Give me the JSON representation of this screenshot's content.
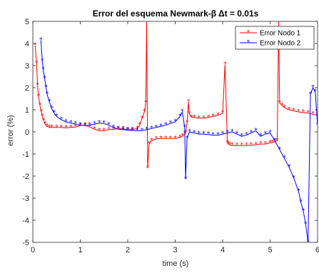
{
  "chart_data": {
    "type": "line",
    "title": "Error del esquema Newmark-β Δt = 0.01s",
    "xlabel": "time (s)",
    "ylabel": "error (%)",
    "xlim": [
      0,
      6
    ],
    "ylim": [
      -5,
      5
    ],
    "xticks": [
      "0",
      "1",
      "2",
      "3",
      "4",
      "5",
      "6"
    ],
    "yticks": [
      "5",
      "4",
      "3",
      "2",
      "1",
      "0",
      "-1",
      "-2",
      "-3",
      "-4",
      "-5"
    ],
    "grid": false,
    "legend_position": "top-right",
    "series": [
      {
        "name": "Error Nodo 1",
        "color": "#ff0000",
        "marker": "asterisk",
        "x": [
          0.05,
          0.08,
          0.1,
          0.12,
          0.15,
          0.18,
          0.2,
          0.23,
          0.26,
          0.3,
          0.35,
          0.4,
          0.5,
          0.6,
          0.7,
          0.8,
          0.9,
          1.0,
          1.1,
          1.2,
          1.3,
          1.4,
          1.5,
          1.6,
          1.7,
          1.8,
          1.9,
          2.0,
          2.1,
          2.2,
          2.25,
          2.3,
          2.35,
          2.38,
          2.4,
          2.42,
          2.45,
          2.5,
          2.6,
          2.7,
          2.8,
          2.9,
          3.0,
          3.1,
          3.15,
          3.2,
          3.22,
          3.25,
          3.28,
          3.3,
          3.35,
          3.4,
          3.5,
          3.6,
          3.7,
          3.8,
          3.9,
          4.0,
          4.05,
          4.1,
          4.12,
          4.15,
          4.2,
          4.3,
          4.4,
          4.5,
          4.6,
          4.7,
          4.8,
          4.9,
          5.0,
          5.05,
          5.1,
          5.15,
          5.18,
          5.2,
          5.25,
          5.3,
          5.4,
          5.5,
          5.6,
          5.7,
          5.8,
          5.9,
          6.0
        ],
        "y": [
          3.9,
          3.1,
          2.1,
          1.6,
          1.2,
          0.9,
          0.7,
          0.5,
          0.35,
          0.25,
          0.2,
          0.2,
          0.2,
          0.2,
          0.18,
          0.2,
          0.22,
          0.28,
          0.3,
          0.22,
          0.12,
          0.05,
          0.05,
          0.1,
          0.12,
          0.14,
          0.14,
          0.1,
          0.1,
          0.15,
          0.3,
          0.6,
          0.9,
          1.3,
          5.0,
          -1.65,
          -0.55,
          -0.4,
          -0.32,
          -0.3,
          -0.3,
          -0.3,
          -0.3,
          -0.25,
          -0.2,
          -0.1,
          -0.05,
          0.4,
          1.35,
          0.8,
          0.65,
          0.65,
          0.62,
          0.62,
          0.65,
          0.7,
          0.75,
          0.85,
          3.05,
          -0.5,
          -0.55,
          -0.6,
          -0.62,
          -0.62,
          -0.62,
          -0.62,
          -0.6,
          -0.58,
          -0.55,
          -0.55,
          -0.5,
          -0.48,
          -0.45,
          -0.4,
          5.0,
          1.3,
          1.2,
          1.1,
          1.0,
          0.95,
          0.9,
          0.88,
          0.85,
          0.8,
          0.75
        ]
      },
      {
        "name": "Error Nodo 2",
        "color": "#0000ff",
        "marker": "asterisk",
        "x": [
          0.17,
          0.2,
          0.22,
          0.25,
          0.28,
          0.3,
          0.35,
          0.4,
          0.45,
          0.5,
          0.6,
          0.7,
          0.8,
          0.9,
          1.0,
          1.1,
          1.2,
          1.3,
          1.4,
          1.5,
          1.6,
          1.7,
          1.8,
          1.9,
          2.0,
          2.1,
          2.2,
          2.3,
          2.4,
          2.5,
          2.6,
          2.7,
          2.8,
          2.9,
          3.0,
          3.1,
          3.15,
          3.2,
          3.22,
          3.25,
          3.3,
          3.4,
          3.5,
          3.6,
          3.7,
          3.8,
          3.9,
          4.0,
          4.1,
          4.2,
          4.3,
          4.4,
          4.5,
          4.6,
          4.7,
          4.8,
          4.9,
          5.0,
          5.1,
          5.2,
          5.3,
          5.4,
          5.5,
          5.6,
          5.65,
          5.7,
          5.75,
          5.8,
          5.85,
          5.9,
          5.95,
          6.0
        ],
        "y": [
          4.15,
          3.2,
          2.8,
          2.4,
          2.0,
          1.7,
          1.35,
          1.05,
          0.85,
          0.7,
          0.55,
          0.45,
          0.4,
          0.35,
          0.3,
          0.28,
          0.3,
          0.35,
          0.4,
          0.38,
          0.3,
          0.2,
          0.12,
          0.1,
          0.08,
          0.06,
          0.05,
          0.05,
          0.1,
          0.15,
          0.2,
          0.25,
          0.3,
          0.38,
          0.45,
          0.7,
          0.9,
          0.2,
          -2.15,
          -0.3,
          0.0,
          -0.05,
          -0.1,
          -0.1,
          -0.12,
          -0.15,
          -0.15,
          -0.1,
          -0.05,
          0.0,
          -0.1,
          -0.2,
          -0.15,
          -0.05,
          0.05,
          -0.2,
          -0.1,
          -0.05,
          -0.4,
          -0.8,
          -1.2,
          -1.6,
          -2.1,
          -2.7,
          -3.2,
          -3.6,
          -4.2,
          -5.0,
          1.7,
          2.0,
          1.8,
          0.3
        ]
      }
    ]
  }
}
